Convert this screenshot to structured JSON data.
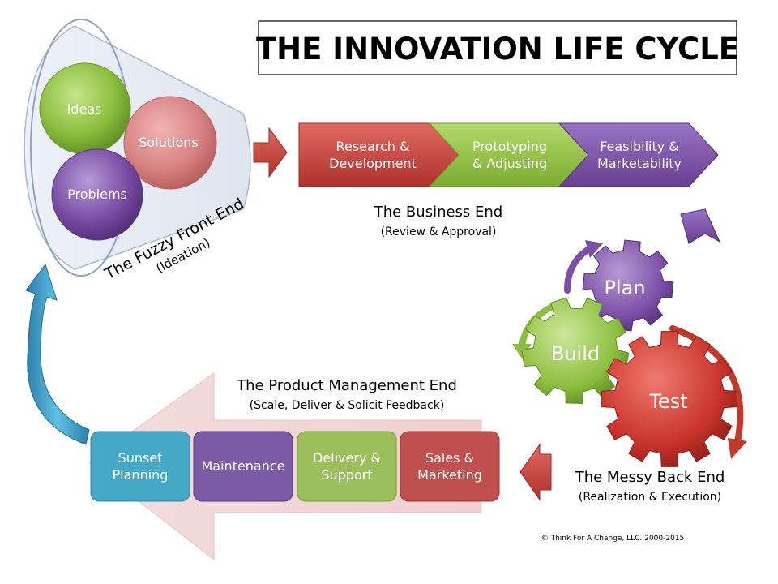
{
  "title": "THE INNOVATION LIFE CYCLE",
  "fuzzy_front_end": {
    "circles": {
      "ideas": "Ideas",
      "solutions": "Solutions",
      "problems": "Problems"
    },
    "label": "The Fuzzy Front End",
    "sublabel": "(Ideation)"
  },
  "business_end": {
    "steps": [
      {
        "line1": "Research &",
        "line2": "Development"
      },
      {
        "line1": "Prototyping",
        "line2": "& Adjusting"
      },
      {
        "line1": "Feasibility &",
        "line2": "Marketability"
      }
    ],
    "label": "The Business End",
    "sublabel": "(Review & Approval)"
  },
  "messy_back_end": {
    "gears": {
      "plan": "Plan",
      "build": "Build",
      "test": "Test"
    },
    "label": "The Messy Back End",
    "sublabel": "(Realization & Execution)"
  },
  "product_management_end": {
    "label": "The Product Management End",
    "sublabel": "(Scale, Deliver & Solicit Feedback)",
    "boxes": [
      {
        "line1": "Sunset",
        "line2": "Planning"
      },
      {
        "line1": "Maintenance",
        "line2": ""
      },
      {
        "line1": "Delivery &",
        "line2": "Support"
      },
      {
        "line1": "Sales &",
        "line2": "Marketing"
      }
    ]
  },
  "copyright": "© Think For A Change, LLC. 2000-2015",
  "colors": {
    "red": "#c0392b",
    "green": "#8cbf3f",
    "purple": "#7b4fa6",
    "teal": "#43a9c6",
    "pink": "#f2d3d3",
    "blue_arrow": "#3a9cc8"
  }
}
